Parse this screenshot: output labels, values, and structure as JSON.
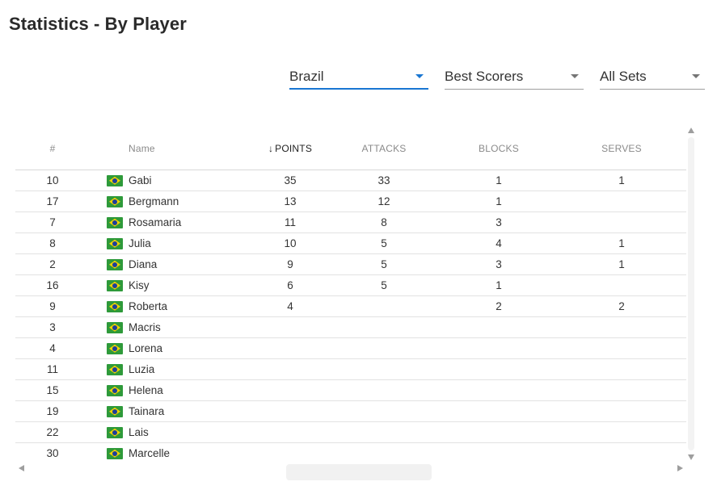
{
  "page": {
    "title": "Statistics - By Player"
  },
  "filters": {
    "team": {
      "value": "Brazil"
    },
    "category": {
      "value": "Best Scorers"
    },
    "sets": {
      "value": "All Sets"
    }
  },
  "colors": {
    "accent": "#1976d2",
    "flag_green": "#2e9a3a",
    "flag_yellow": "#f2d100",
    "flag_blue": "#1d3f9a"
  },
  "table": {
    "headers": {
      "number": "#",
      "name": "Name",
      "points": "POINTS",
      "attacks": "ATTACKS",
      "blocks": "BLOCKS",
      "serves": "SERVES"
    },
    "sorted_by": "points",
    "sort_icon": "arrow-down-icon",
    "rows": [
      {
        "number": "10",
        "flag": "brazil-flag-icon",
        "name": "Gabi",
        "points": "35",
        "attacks": "33",
        "blocks": "1",
        "serves": "1"
      },
      {
        "number": "17",
        "flag": "brazil-flag-icon",
        "name": "Bergmann",
        "points": "13",
        "attacks": "12",
        "blocks": "1",
        "serves": ""
      },
      {
        "number": "7",
        "flag": "brazil-flag-icon",
        "name": "Rosamaria",
        "points": "11",
        "attacks": "8",
        "blocks": "3",
        "serves": ""
      },
      {
        "number": "8",
        "flag": "brazil-flag-icon",
        "name": "Julia",
        "points": "10",
        "attacks": "5",
        "blocks": "4",
        "serves": "1"
      },
      {
        "number": "2",
        "flag": "brazil-flag-icon",
        "name": "Diana",
        "points": "9",
        "attacks": "5",
        "blocks": "3",
        "serves": "1"
      },
      {
        "number": "16",
        "flag": "brazil-flag-icon",
        "name": "Kisy",
        "points": "6",
        "attacks": "5",
        "blocks": "1",
        "serves": ""
      },
      {
        "number": "9",
        "flag": "brazil-flag-icon",
        "name": "Roberta",
        "points": "4",
        "attacks": "",
        "blocks": "2",
        "serves": "2"
      },
      {
        "number": "3",
        "flag": "brazil-flag-icon",
        "name": "Macris",
        "points": "",
        "attacks": "",
        "blocks": "",
        "serves": ""
      },
      {
        "number": "4",
        "flag": "brazil-flag-icon",
        "name": "Lorena",
        "points": "",
        "attacks": "",
        "blocks": "",
        "serves": ""
      },
      {
        "number": "11",
        "flag": "brazil-flag-icon",
        "name": "Luzia",
        "points": "",
        "attacks": "",
        "blocks": "",
        "serves": ""
      },
      {
        "number": "15",
        "flag": "brazil-flag-icon",
        "name": "Helena",
        "points": "",
        "attacks": "",
        "blocks": "",
        "serves": ""
      },
      {
        "number": "19",
        "flag": "brazil-flag-icon",
        "name": "Tainara",
        "points": "",
        "attacks": "",
        "blocks": "",
        "serves": ""
      },
      {
        "number": "22",
        "flag": "brazil-flag-icon",
        "name": "Lais",
        "points": "",
        "attacks": "",
        "blocks": "",
        "serves": ""
      },
      {
        "number": "30",
        "flag": "brazil-flag-icon",
        "name": "Marcelle",
        "points": "",
        "attacks": "",
        "blocks": "",
        "serves": ""
      }
    ]
  }
}
